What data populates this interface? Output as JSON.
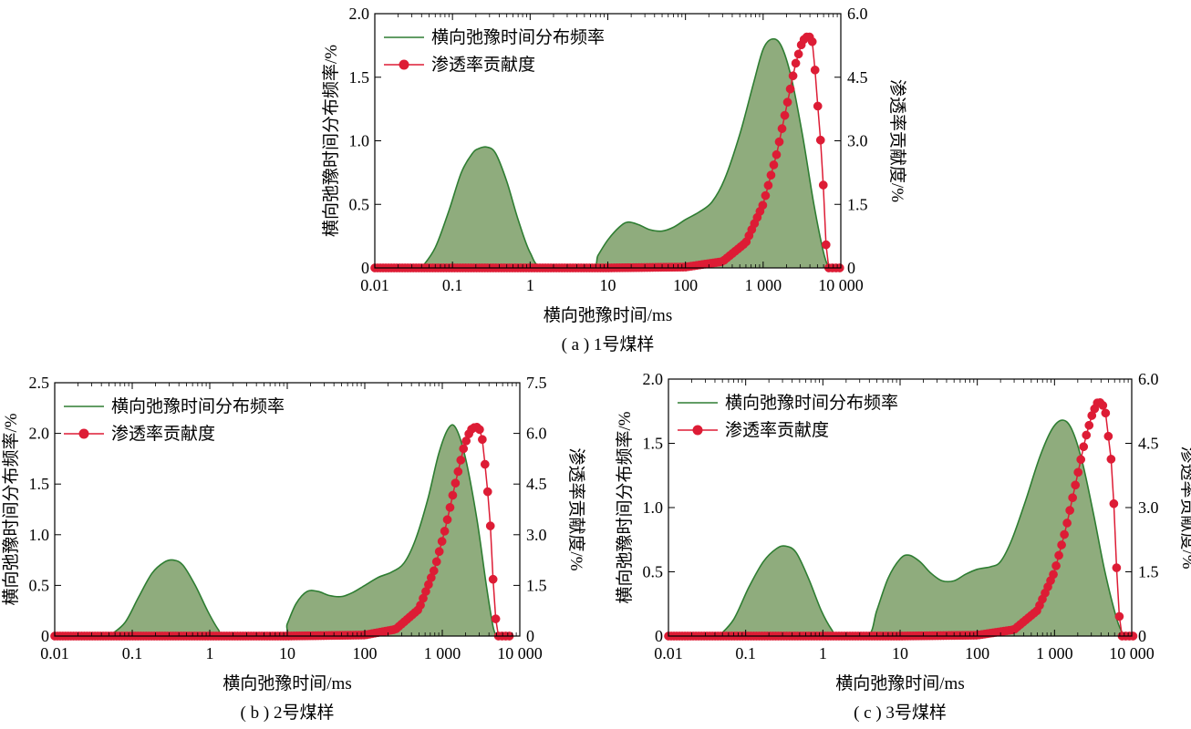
{
  "chart_data": [
    {
      "type": "area",
      "caption": "( a ) 1号煤样",
      "xlabel": "横向弛豫时间/ms",
      "ylabel": "横向弛豫时间分布频率/%",
      "y2label": "渗透率贡献度/%",
      "xscale": "log",
      "xlim": [
        0.01,
        10000
      ],
      "ylim": [
        0,
        2.0
      ],
      "y2lim": [
        0,
        6.0
      ],
      "x_ticks": [
        "0.01",
        "0.1",
        "1",
        "10",
        "100",
        "1 000",
        "10 000"
      ],
      "y_ticks": [
        "0",
        "0.5",
        "1.0",
        "1.5",
        "2.0"
      ],
      "y2_ticks": [
        "0",
        "1.5",
        "3.0",
        "4.5",
        "6.0"
      ],
      "legend_position": "top-left",
      "series": [
        {
          "name": "横向弛豫时间分布频率",
          "axis": "left",
          "style": "filled-area",
          "color": "#2e7d32",
          "fill": "#8fac7d",
          "points": [
            [
              0.04,
              0.0
            ],
            [
              0.06,
              0.16
            ],
            [
              0.09,
              0.45
            ],
            [
              0.13,
              0.75
            ],
            [
              0.18,
              0.9
            ],
            [
              0.22,
              0.94
            ],
            [
              0.28,
              0.95
            ],
            [
              0.36,
              0.9
            ],
            [
              0.5,
              0.68
            ],
            [
              0.7,
              0.38
            ],
            [
              1.0,
              0.12
            ],
            [
              1.5,
              0.0
            ],
            [
              6.0,
              0.0
            ],
            [
              7.5,
              0.1
            ],
            [
              10,
              0.22
            ],
            [
              14,
              0.32
            ],
            [
              18,
              0.36
            ],
            [
              25,
              0.34
            ],
            [
              35,
              0.3
            ],
            [
              50,
              0.29
            ],
            [
              70,
              0.32
            ],
            [
              100,
              0.38
            ],
            [
              150,
              0.44
            ],
            [
              220,
              0.52
            ],
            [
              320,
              0.7
            ],
            [
              500,
              1.05
            ],
            [
              750,
              1.45
            ],
            [
              1000,
              1.72
            ],
            [
              1300,
              1.8
            ],
            [
              1700,
              1.75
            ],
            [
              2300,
              1.5
            ],
            [
              3200,
              1.05
            ],
            [
              4500,
              0.5
            ],
            [
              6000,
              0.12
            ],
            [
              7000,
              0.0
            ]
          ]
        },
        {
          "name": "渗透率贡献度",
          "axis": "right",
          "style": "line-markers",
          "color": "#dd1c35",
          "points": [
            [
              10,
              0.0
            ],
            [
              100,
              0.02
            ],
            [
              300,
              0.15
            ],
            [
              600,
              0.6
            ],
            [
              1000,
              1.5
            ],
            [
              1500,
              2.7
            ],
            [
              2000,
              3.8
            ],
            [
              2600,
              4.8
            ],
            [
              3200,
              5.35
            ],
            [
              3600,
              5.45
            ],
            [
              4000,
              5.45
            ],
            [
              4400,
              5.3
            ],
            [
              4900,
              4.1
            ],
            [
              5400,
              3.2
            ],
            [
              5900,
              2.1
            ],
            [
              6400,
              0.6
            ],
            [
              7000,
              0.0
            ]
          ]
        }
      ]
    },
    {
      "type": "area",
      "caption": "( b ) 2号煤样",
      "xlabel": "横向弛豫时间/ms",
      "ylabel": "横向弛豫时间分布频率/%",
      "y2label": "渗透率贡献度/%",
      "xscale": "log",
      "xlim": [
        0.01,
        10000
      ],
      "ylim": [
        0,
        2.5
      ],
      "y2lim": [
        0,
        7.5
      ],
      "x_ticks": [
        "0.01",
        "0.1",
        "1",
        "10",
        "100",
        "1 000",
        "10 000"
      ],
      "y_ticks": [
        "0",
        "0.5",
        "1.0",
        "1.5",
        "2.0",
        "2.5"
      ],
      "y2_ticks": [
        "0",
        "1.5",
        "3.0",
        "4.5",
        "6.0",
        "7.5"
      ],
      "legend_position": "top-left",
      "series": [
        {
          "name": "横向弛豫时间分布频率",
          "axis": "left",
          "style": "filled-area",
          "color": "#2e7d32",
          "fill": "#8fac7d",
          "points": [
            [
              0.05,
              0.0
            ],
            [
              0.08,
              0.13
            ],
            [
              0.12,
              0.38
            ],
            [
              0.18,
              0.62
            ],
            [
              0.26,
              0.73
            ],
            [
              0.34,
              0.75
            ],
            [
              0.45,
              0.7
            ],
            [
              0.65,
              0.5
            ],
            [
              0.95,
              0.24
            ],
            [
              1.3,
              0.06
            ],
            [
              1.6,
              0.0
            ],
            [
              8.5,
              0.0
            ],
            [
              10,
              0.12
            ],
            [
              13,
              0.32
            ],
            [
              18,
              0.44
            ],
            [
              25,
              0.44
            ],
            [
              35,
              0.4
            ],
            [
              50,
              0.39
            ],
            [
              70,
              0.43
            ],
            [
              100,
              0.5
            ],
            [
              150,
              0.58
            ],
            [
              220,
              0.63
            ],
            [
              320,
              0.72
            ],
            [
              450,
              0.95
            ],
            [
              650,
              1.35
            ],
            [
              900,
              1.8
            ],
            [
              1200,
              2.05
            ],
            [
              1500,
              2.05
            ],
            [
              2000,
              1.75
            ],
            [
              2800,
              1.15
            ],
            [
              3700,
              0.5
            ],
            [
              4500,
              0.1
            ],
            [
              5000,
              0.0
            ]
          ]
        },
        {
          "name": "渗透率贡献度",
          "axis": "right",
          "style": "line-markers",
          "color": "#dd1c35",
          "points": [
            [
              10,
              0.0
            ],
            [
              100,
              0.03
            ],
            [
              250,
              0.2
            ],
            [
              500,
              0.8
            ],
            [
              800,
              2.0
            ],
            [
              1100,
              3.2
            ],
            [
              1500,
              4.6
            ],
            [
              1900,
              5.6
            ],
            [
              2300,
              6.1
            ],
            [
              2700,
              6.2
            ],
            [
              3000,
              6.15
            ],
            [
              3300,
              5.8
            ],
            [
              3700,
              4.7
            ],
            [
              4100,
              3.6
            ],
            [
              4400,
              2.2
            ],
            [
              4700,
              0.9
            ],
            [
              5000,
              0.3
            ],
            [
              5300,
              0.0
            ]
          ]
        }
      ]
    },
    {
      "type": "area",
      "caption": "( c ) 3号煤样",
      "xlabel": "横向弛豫时间/ms",
      "ylabel": "横向弛豫时间分布频率/%",
      "y2label": "渗透率贡献度/%",
      "xscale": "log",
      "xlim": [
        0.01,
        10000
      ],
      "ylim": [
        0,
        2.0
      ],
      "y2lim": [
        0,
        6.0
      ],
      "x_ticks": [
        "0.01",
        "0.1",
        "1",
        "10",
        "100",
        "1 000",
        "10 000"
      ],
      "y_ticks": [
        "0",
        "0.5",
        "1.0",
        "1.5",
        "2.0"
      ],
      "y2_ticks": [
        "0",
        "1.5",
        "3.0",
        "4.5",
        "6.0"
      ],
      "legend_position": "top-left",
      "series": [
        {
          "name": "横向弛豫时间分布频率",
          "axis": "left",
          "style": "filled-area",
          "color": "#2e7d32",
          "fill": "#8fac7d",
          "points": [
            [
              0.045,
              0.0
            ],
            [
              0.07,
              0.13
            ],
            [
              0.11,
              0.38
            ],
            [
              0.17,
              0.58
            ],
            [
              0.25,
              0.68
            ],
            [
              0.33,
              0.7
            ],
            [
              0.45,
              0.65
            ],
            [
              0.65,
              0.45
            ],
            [
              0.95,
              0.2
            ],
            [
              1.3,
              0.05
            ],
            [
              1.6,
              0.0
            ],
            [
              3.8,
              0.0
            ],
            [
              5,
              0.2
            ],
            [
              7,
              0.45
            ],
            [
              10,
              0.6
            ],
            [
              13,
              0.63
            ],
            [
              18,
              0.58
            ],
            [
              25,
              0.49
            ],
            [
              35,
              0.43
            ],
            [
              50,
              0.43
            ],
            [
              70,
              0.48
            ],
            [
              100,
              0.52
            ],
            [
              150,
              0.54
            ],
            [
              200,
              0.58
            ],
            [
              280,
              0.75
            ],
            [
              420,
              1.05
            ],
            [
              650,
              1.4
            ],
            [
              950,
              1.62
            ],
            [
              1300,
              1.68
            ],
            [
              1700,
              1.6
            ],
            [
              2300,
              1.35
            ],
            [
              3200,
              0.95
            ],
            [
              4500,
              0.5
            ],
            [
              6500,
              0.12
            ],
            [
              8000,
              0.0
            ]
          ]
        },
        {
          "name": "渗透率贡献度",
          "axis": "right",
          "style": "line-markers",
          "color": "#dd1c35",
          "points": [
            [
              10,
              0.0
            ],
            [
              100,
              0.02
            ],
            [
              300,
              0.15
            ],
            [
              600,
              0.6
            ],
            [
              1000,
              1.5
            ],
            [
              1400,
              2.5
            ],
            [
              1900,
              3.6
            ],
            [
              2500,
              4.6
            ],
            [
              3100,
              5.2
            ],
            [
              3600,
              5.45
            ],
            [
              4100,
              5.45
            ],
            [
              4600,
              5.2
            ],
            [
              5100,
              4.5
            ],
            [
              5600,
              3.9
            ],
            [
              6100,
              2.4
            ],
            [
              6500,
              1.2
            ],
            [
              7000,
              0.3
            ],
            [
              7500,
              0.0
            ]
          ]
        }
      ]
    }
  ]
}
